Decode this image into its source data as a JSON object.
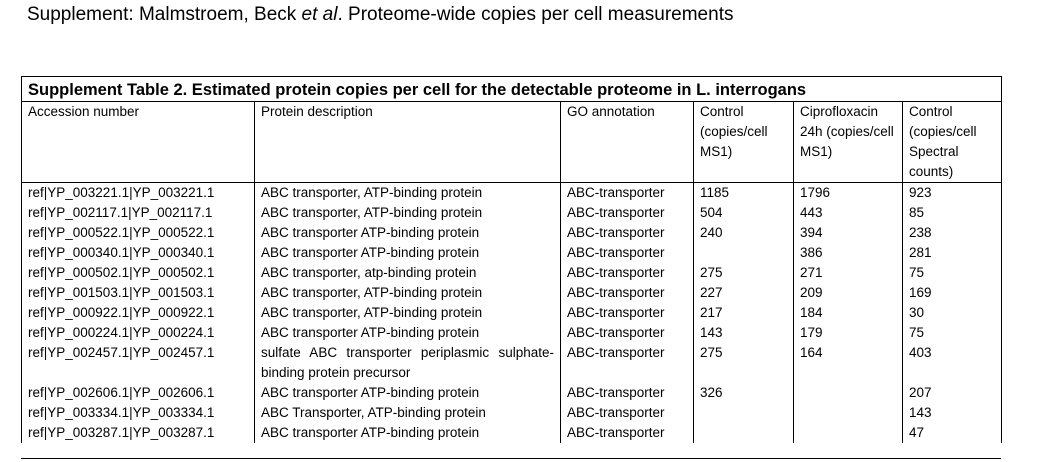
{
  "supplement_header": {
    "prefix": "Supplement: Malmstroem, Beck ",
    "etal": "et al",
    "suffix": ". Proteome-wide copies per cell measurements"
  },
  "table": {
    "caption": "Supplement Table 2. Estimated protein copies per cell for the detectable proteome in L. interrogans",
    "columns": [
      "Accession number",
      "Protein description",
      "GO annotation",
      "Control (copies/cell MS1)",
      "Ciprofloxacin 24h (copies/cell MS1)",
      "Control (copies/cell Spectral counts)"
    ],
    "rows": [
      {
        "accession": "ref|YP_003221.1|YP_003221.1",
        "description": "ABC transporter, ATP-binding protein",
        "go": "ABC-transporter",
        "control_ms1": "1185",
        "cipro_ms1": "1796",
        "control_spectral": "923"
      },
      {
        "accession": "ref|YP_002117.1|YP_002117.1",
        "description": "ABC transporter, ATP-binding protein",
        "go": "ABC-transporter",
        "control_ms1": "504",
        "cipro_ms1": "443",
        "control_spectral": "85"
      },
      {
        "accession": "ref|YP_000522.1|YP_000522.1",
        "description": "ABC transporter ATP-binding protein",
        "go": "ABC-transporter",
        "control_ms1": "240",
        "cipro_ms1": "394",
        "control_spectral": "238"
      },
      {
        "accession": "ref|YP_000340.1|YP_000340.1",
        "description": "ABC transporter ATP-binding protein",
        "go": "ABC-transporter",
        "control_ms1": "",
        "cipro_ms1": "386",
        "control_spectral": "281"
      },
      {
        "accession": "ref|YP_000502.1|YP_000502.1",
        "description": "ABC transporter, atp-binding protein",
        "go": "ABC-transporter",
        "control_ms1": "275",
        "cipro_ms1": "271",
        "control_spectral": "75"
      },
      {
        "accession": "ref|YP_001503.1|YP_001503.1",
        "description": "ABC transporter, ATP-binding protein",
        "go": "ABC-transporter",
        "control_ms1": "227",
        "cipro_ms1": "209",
        "control_spectral": "169"
      },
      {
        "accession": "ref|YP_000922.1|YP_000922.1",
        "description": "ABC transporter, ATP-binding protein",
        "go": "ABC-transporter",
        "control_ms1": "217",
        "cipro_ms1": "184",
        "control_spectral": "30"
      },
      {
        "accession": "ref|YP_000224.1|YP_000224.1",
        "description": "ABC transporter ATP-binding protein",
        "go": "ABC-transporter",
        "control_ms1": "143",
        "cipro_ms1": "179",
        "control_spectral": "75"
      },
      {
        "accession": "ref|YP_002457.1|YP_002457.1",
        "description": "sulfate ABC transporter periplasmic sulphate-binding protein precursor",
        "go": "ABC-transporter",
        "control_ms1": "275",
        "cipro_ms1": "164",
        "control_spectral": "403"
      },
      {
        "accession": "ref|YP_002606.1|YP_002606.1",
        "description": "ABC transporter ATP-binding protein",
        "go": "ABC-transporter",
        "control_ms1": "326",
        "cipro_ms1": "",
        "control_spectral": "207"
      },
      {
        "accession": "ref|YP_003334.1|YP_003334.1",
        "description": "ABC Transporter, ATP-binding protein",
        "go": "ABC-transporter",
        "control_ms1": "",
        "cipro_ms1": "",
        "control_spectral": "143"
      },
      {
        "accession": "ref|YP_003287.1|YP_003287.1",
        "description": "ABC transporter ATP-binding protein",
        "go": "ABC-transporter",
        "control_ms1": "",
        "cipro_ms1": "",
        "control_spectral": "47"
      }
    ]
  }
}
